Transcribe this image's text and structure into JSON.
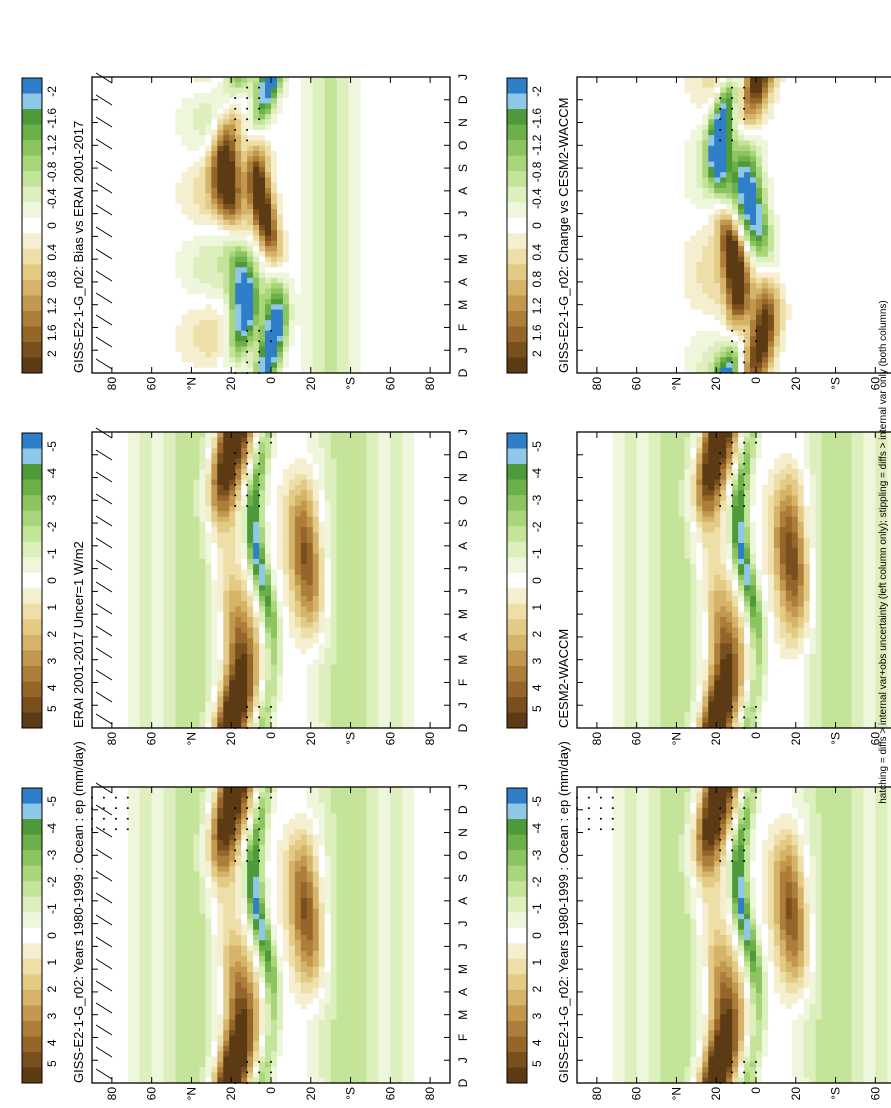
{
  "footnote": "hatching = diffs > internal var+obs uncertainty (left column only); stippling = diffs > internal var only (both columns)",
  "month_ticks": [
    "D",
    "J",
    "F",
    "M",
    "A",
    "M",
    "J",
    "J",
    "A",
    "S",
    "O",
    "N",
    "D",
    "J"
  ],
  "lat_ticks": [
    "80",
    "60",
    "°N",
    "20",
    "0",
    "20",
    "°S",
    "60",
    "80"
  ],
  "palette_main": [
    "#5c3a14",
    "#7a4f1e",
    "#95652a",
    "#ad7d3a",
    "#c2984f",
    "#d5b46a",
    "#e3cb86",
    "#eedfa8",
    "#f6efcf",
    "#ffffff",
    "#eef6dc",
    "#dcefbc",
    "#c4e49a",
    "#a9d67b",
    "#8cc560",
    "#6cb049",
    "#4e9a3a",
    "#8fc7e8",
    "#2f7fc8"
  ],
  "palette_diff": [
    "#5c3a14",
    "#7a4f1e",
    "#95652a",
    "#ad7d3a",
    "#c2984f",
    "#d5b46a",
    "#e3cb86",
    "#eedfa8",
    "#f6efcf",
    "#ffffff",
    "#eef6dc",
    "#dcefbc",
    "#c4e49a",
    "#a9d67b",
    "#8cc560",
    "#6cb049",
    "#4e9a3a",
    "#8fc7e8",
    "#2f7fc8"
  ],
  "chart_data": [
    {
      "type": "heatmap",
      "title": "GISS-E2-1-G_r02: Years 1980-1999 : Ocean : ep (mm/day)",
      "x": "month",
      "y": "latitude",
      "mode": "main",
      "hatching": true,
      "stippling": true,
      "colorbar": {
        "labels": [
          "5",
          "4",
          "3",
          "2",
          "1",
          "0",
          "-1",
          "-2",
          "-3",
          "-4",
          "-5"
        ]
      }
    },
    {
      "type": "heatmap",
      "title": "GISS-E2-1-G_r02: Years 1980-1999 : Ocean : ep (mm/day)",
      "x": "month",
      "y": "latitude",
      "mode": "main",
      "hatching": false,
      "stippling": true,
      "colorbar": {
        "labels": [
          "5",
          "4",
          "3",
          "2",
          "1",
          "0",
          "-1",
          "-2",
          "-3",
          "-4",
          "-5"
        ]
      }
    },
    {
      "type": "heatmap",
      "title": "ERAI 2001-2017 Uncer=1 W/m2",
      "x": "month",
      "y": "latitude",
      "mode": "obs",
      "hatching": true,
      "stippling": true,
      "colorbar": {
        "labels": [
          "5",
          "4",
          "3",
          "2",
          "1",
          "0",
          "-1",
          "-2",
          "-3",
          "-4",
          "-5"
        ]
      }
    },
    {
      "type": "heatmap",
      "title": "CESM2-WACCM",
      "x": "month",
      "y": "latitude",
      "mode": "cesm",
      "hatching": false,
      "stippling": true,
      "colorbar": {
        "labels": [
          "5",
          "4",
          "3",
          "2",
          "1",
          "0",
          "-1",
          "-2",
          "-3",
          "-4",
          "-5"
        ]
      }
    },
    {
      "type": "heatmap",
      "title": "GISS-E2-1-G_r02: Bias vs ERAI 2001-2017",
      "x": "month",
      "y": "latitude",
      "mode": "bias",
      "hatching": true,
      "stippling": true,
      "colorbar": {
        "labels": [
          "2",
          "1.6",
          "1.2",
          "0.8",
          "0.4",
          "0",
          "-0.4",
          "-0.8",
          "-1.2",
          "-1.6",
          "-2"
        ]
      }
    },
    {
      "type": "heatmap",
      "title": "GISS-E2-1-G_r02: Change vs CESM2-WACCM",
      "x": "month",
      "y": "latitude",
      "mode": "change",
      "hatching": false,
      "stippling": true,
      "colorbar": {
        "labels": [
          "2",
          "1.6",
          "1.2",
          "0.8",
          "0.4",
          "0",
          "-0.4",
          "-0.8",
          "-1.2",
          "-1.6",
          "-2"
        ]
      }
    }
  ]
}
